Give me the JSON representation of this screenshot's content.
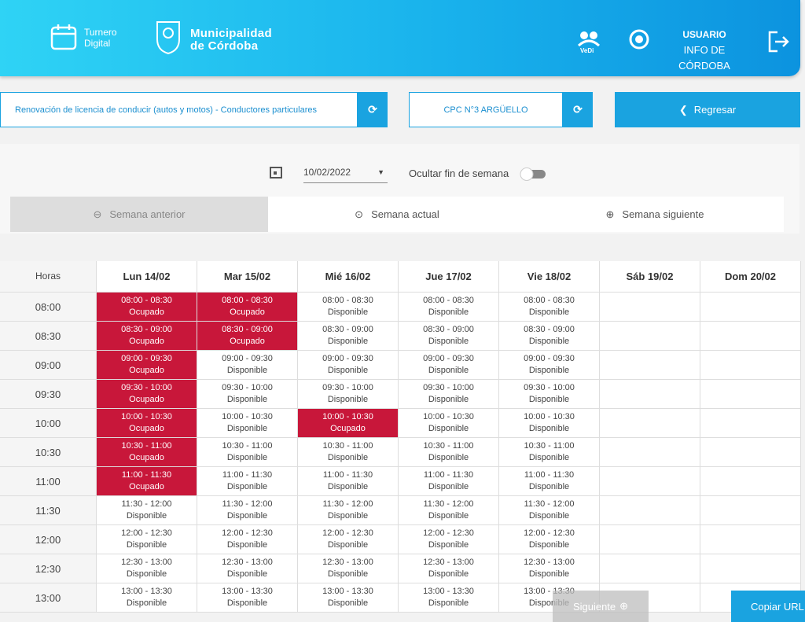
{
  "header": {
    "app_line1": "Turnero",
    "app_line2": "Digital",
    "brand_line1": "Municipalidad",
    "brand_line2": "de Córdoba",
    "vedi": "VeDi",
    "user_label": "USUARIO",
    "user_name": "INFO DE CÓRDOBA"
  },
  "toolbar": {
    "procedure": "Renovación de licencia de conducir (autos y motos) - Conductores particulares",
    "office": "CPC N°3 ARGÜELLO",
    "back": "Regresar"
  },
  "filters": {
    "date": "10/02/2022",
    "hide_weekend": "Ocultar fin de semana",
    "prev_week": "Semana anterior",
    "this_week": "Semana actual",
    "next_week": "Semana siguiente"
  },
  "table": {
    "hours_header": "Horas",
    "days": [
      "Lun 14/02",
      "Mar 15/02",
      "Mié 16/02",
      "Jue 17/02",
      "Vie 18/02",
      "Sáb 19/02",
      "Dom 20/02"
    ],
    "rows": [
      {
        "hour": "08:00",
        "slots": [
          {
            "time": "08:00 - 08:30",
            "status": "Ocupado",
            "occupied": true
          },
          {
            "time": "08:00 - 08:30",
            "status": "Ocupado",
            "occupied": true
          },
          {
            "time": "08:00 - 08:30",
            "status": "Disponible",
            "occupied": false
          },
          {
            "time": "08:00 - 08:30",
            "status": "Disponible",
            "occupied": false
          },
          {
            "time": "08:00 - 08:30",
            "status": "Disponible",
            "occupied": false
          }
        ]
      },
      {
        "hour": "08:30",
        "slots": [
          {
            "time": "08:30 - 09:00",
            "status": "Ocupado",
            "occupied": true
          },
          {
            "time": "08:30 - 09:00",
            "status": "Ocupado",
            "occupied": true
          },
          {
            "time": "08:30 - 09:00",
            "status": "Disponible",
            "occupied": false
          },
          {
            "time": "08:30 - 09:00",
            "status": "Disponible",
            "occupied": false
          },
          {
            "time": "08:30 - 09:00",
            "status": "Disponible",
            "occupied": false
          }
        ]
      },
      {
        "hour": "09:00",
        "slots": [
          {
            "time": "09:00 - 09:30",
            "status": "Ocupado",
            "occupied": true
          },
          {
            "time": "09:00 - 09:30",
            "status": "Disponible",
            "occupied": false
          },
          {
            "time": "09:00 - 09:30",
            "status": "Disponible",
            "occupied": false
          },
          {
            "time": "09:00 - 09:30",
            "status": "Disponible",
            "occupied": false
          },
          {
            "time": "09:00 - 09:30",
            "status": "Disponible",
            "occupied": false
          }
        ]
      },
      {
        "hour": "09:30",
        "slots": [
          {
            "time": "09:30 - 10:00",
            "status": "Ocupado",
            "occupied": true
          },
          {
            "time": "09:30 - 10:00",
            "status": "Disponible",
            "occupied": false
          },
          {
            "time": "09:30 - 10:00",
            "status": "Disponible",
            "occupied": false
          },
          {
            "time": "09:30 - 10:00",
            "status": "Disponible",
            "occupied": false
          },
          {
            "time": "09:30 - 10:00",
            "status": "Disponible",
            "occupied": false
          }
        ]
      },
      {
        "hour": "10:00",
        "slots": [
          {
            "time": "10:00 - 10:30",
            "status": "Ocupado",
            "occupied": true
          },
          {
            "time": "10:00 - 10:30",
            "status": "Disponible",
            "occupied": false
          },
          {
            "time": "10:00 - 10:30",
            "status": "Ocupado",
            "occupied": true
          },
          {
            "time": "10:00 - 10:30",
            "status": "Disponible",
            "occupied": false
          },
          {
            "time": "10:00 - 10:30",
            "status": "Disponible",
            "occupied": false
          }
        ]
      },
      {
        "hour": "10:30",
        "slots": [
          {
            "time": "10:30 - 11:00",
            "status": "Ocupado",
            "occupied": true
          },
          {
            "time": "10:30 - 11:00",
            "status": "Disponible",
            "occupied": false
          },
          {
            "time": "10:30 - 11:00",
            "status": "Disponible",
            "occupied": false
          },
          {
            "time": "10:30 - 11:00",
            "status": "Disponible",
            "occupied": false
          },
          {
            "time": "10:30 - 11:00",
            "status": "Disponible",
            "occupied": false
          }
        ]
      },
      {
        "hour": "11:00",
        "slots": [
          {
            "time": "11:00 - 11:30",
            "status": "Ocupado",
            "occupied": true
          },
          {
            "time": "11:00 - 11:30",
            "status": "Disponible",
            "occupied": false
          },
          {
            "time": "11:00 - 11:30",
            "status": "Disponible",
            "occupied": false
          },
          {
            "time": "11:00 - 11:30",
            "status": "Disponible",
            "occupied": false
          },
          {
            "time": "11:00 - 11:30",
            "status": "Disponible",
            "occupied": false
          }
        ]
      },
      {
        "hour": "11:30",
        "slots": [
          {
            "time": "11:30 - 12:00",
            "status": "Disponible",
            "occupied": false
          },
          {
            "time": "11:30 - 12:00",
            "status": "Disponible",
            "occupied": false
          },
          {
            "time": "11:30 - 12:00",
            "status": "Disponible",
            "occupied": false
          },
          {
            "time": "11:30 - 12:00",
            "status": "Disponible",
            "occupied": false
          },
          {
            "time": "11:30 - 12:00",
            "status": "Disponible",
            "occupied": false
          }
        ]
      },
      {
        "hour": "12:00",
        "slots": [
          {
            "time": "12:00 - 12:30",
            "status": "Disponible",
            "occupied": false
          },
          {
            "time": "12:00 - 12:30",
            "status": "Disponible",
            "occupied": false
          },
          {
            "time": "12:00 - 12:30",
            "status": "Disponible",
            "occupied": false
          },
          {
            "time": "12:00 - 12:30",
            "status": "Disponible",
            "occupied": false
          },
          {
            "time": "12:00 - 12:30",
            "status": "Disponible",
            "occupied": false
          }
        ]
      },
      {
        "hour": "12:30",
        "slots": [
          {
            "time": "12:30 - 13:00",
            "status": "Disponible",
            "occupied": false
          },
          {
            "time": "12:30 - 13:00",
            "status": "Disponible",
            "occupied": false
          },
          {
            "time": "12:30 - 13:00",
            "status": "Disponible",
            "occupied": false
          },
          {
            "time": "12:30 - 13:00",
            "status": "Disponible",
            "occupied": false
          },
          {
            "time": "12:30 - 13:00",
            "status": "Disponible",
            "occupied": false
          }
        ]
      },
      {
        "hour": "13:00",
        "slots": [
          {
            "time": "13:00 - 13:30",
            "status": "Disponible",
            "occupied": false
          },
          {
            "time": "13:00 - 13:30",
            "status": "Disponible",
            "occupied": false
          },
          {
            "time": "13:00 - 13:30",
            "status": "Disponible",
            "occupied": false
          },
          {
            "time": "13:00 - 13:30",
            "status": "Disponible",
            "occupied": false
          },
          {
            "time": "13:00 - 13:30",
            "status": "Disponible",
            "occupied": false
          }
        ]
      }
    ]
  },
  "footer": {
    "next": "Siguiente",
    "copy_url": "Copiar URL"
  }
}
